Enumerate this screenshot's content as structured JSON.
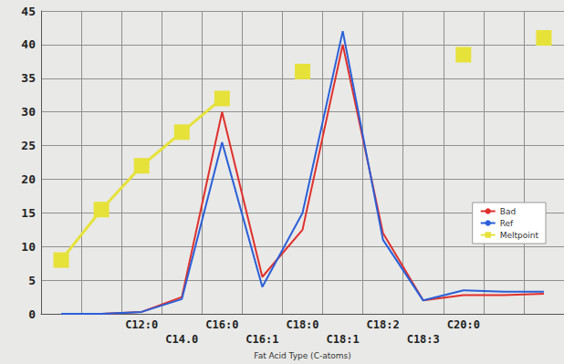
{
  "chart_data": {
    "type": "line",
    "x_label": "Fat Acid Type (C-atoms)",
    "categories": [
      null,
      null,
      "C12:0",
      "C14.0",
      "C16:0",
      "C16:1",
      "C18:0",
      "C18:1",
      "C18:2",
      "C18:3",
      "C20:0",
      null,
      null
    ],
    "series": [
      {
        "name": "Bad",
        "color": "#e0302c",
        "marker": "none",
        "values": [
          0,
          0,
          0.3,
          2.5,
          30,
          5.5,
          12.5,
          40,
          12,
          2,
          2.8,
          2.8,
          3
        ]
      },
      {
        "name": "Ref",
        "color": "#2a5fd8",
        "marker": "none",
        "values": [
          0,
          0,
          0.3,
          2.2,
          25.5,
          4,
          15,
          42,
          11,
          2,
          3.5,
          3.3,
          3.3
        ]
      },
      {
        "name": "Meltpoint",
        "color": "#e6e23a",
        "marker": "square",
        "values": [
          8,
          15.5,
          22,
          27,
          32,
          null,
          36,
          null,
          null,
          null,
          38.5,
          null,
          41
        ]
      }
    ],
    "ylim": [
      0,
      45
    ],
    "yticks": [
      0,
      5,
      10,
      15,
      20,
      25,
      30,
      35,
      40,
      45
    ],
    "grid": true,
    "legend": "right"
  }
}
